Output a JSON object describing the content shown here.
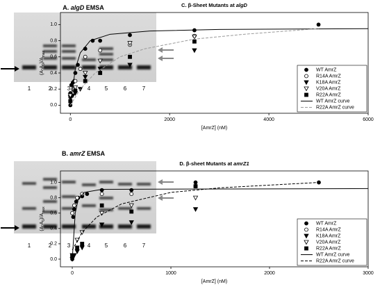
{
  "gels": [
    {
      "title": [
        "A.",
        "algD",
        "EMSA"
      ],
      "lanes": [
        "1",
        "2",
        "3",
        "4",
        "5",
        "6",
        "7"
      ]
    },
    {
      "title": [
        "B.",
        "amrZ",
        "EMSA"
      ],
      "lanes": [
        "1",
        "2",
        "3",
        "4",
        "5",
        "6",
        "7"
      ]
    }
  ],
  "chart_data": [
    {
      "type": "scatter",
      "title": [
        "C.  β-Sheet Mutants at",
        "algD"
      ],
      "xlabel": "[AmrZ] (nM)",
      "ylabel": [
        "(A-A",
        "0",
        ")/A",
        "max"
      ],
      "xlim": [
        -200,
        6000
      ],
      "xticks": [
        0,
        2000,
        4000,
        6000
      ],
      "ylim": [
        -0.1,
        1.15
      ],
      "yticks": [
        {
          "value": 0,
          "label": "0.0"
        },
        0.2,
        0.4,
        0.6,
        0.8,
        {
          "value": 1,
          "label": "1.0"
        }
      ],
      "legend": "lower right",
      "series": [
        {
          "name": "WT AmrZ",
          "color": "#000000",
          "marker": "circle-filled",
          "x": [
            0,
            0,
            20,
            50,
            80,
            100,
            150,
            300,
            450,
            600,
            1200,
            2500,
            5000
          ],
          "values": [
            0.0,
            0.15,
            0.25,
            0.28,
            0.3,
            0.4,
            0.5,
            0.7,
            0.8,
            0.8,
            0.87,
            0.93,
            1.0
          ]
        },
        {
          "name": "R14A AmrZ",
          "color": "#000000",
          "marker": "circle-open",
          "x": [
            0,
            50,
            100,
            200,
            300,
            600,
            1200,
            2500
          ],
          "values": [
            0.1,
            0.2,
            0.3,
            0.45,
            0.6,
            0.68,
            0.75,
            0.86
          ]
        },
        {
          "name": "K18A AmrZ",
          "color": "#000000",
          "marker": "triangle-filled",
          "x": [
            0,
            50,
            100,
            200,
            300,
            600,
            1200,
            2500
          ],
          "values": [
            0.1,
            0.12,
            0.15,
            0.2,
            0.35,
            0.45,
            0.5,
            0.68
          ]
        },
        {
          "name": "V20A AmrZ",
          "color": "#000000",
          "marker": "triangle-open",
          "x": [
            0,
            100,
            300,
            600,
            1200,
            2500
          ],
          "values": [
            0.12,
            0.22,
            0.4,
            0.55,
            0.77,
            0.85
          ]
        },
        {
          "name": "R22A AmrZ",
          "color": "#000000",
          "marker": "square-filled",
          "x": [
            0,
            100,
            300,
            600,
            1200,
            2500
          ],
          "values": [
            0.05,
            0.18,
            0.3,
            0.4,
            0.6,
            0.79
          ]
        },
        {
          "name": "WT AmrZ curve",
          "color": "#000000",
          "line": "solid",
          "x": [
            0,
            100,
            200,
            400,
            800,
            1600,
            3000,
            6000
          ],
          "values": [
            0,
            0.45,
            0.65,
            0.8,
            0.88,
            0.92,
            0.94,
            0.95
          ]
        },
        {
          "name": "R22A AmrZ curve",
          "color": "#999999",
          "line": "dashed",
          "x": [
            0,
            200,
            500,
            1000,
            1500,
            2500,
            3500,
            5000
          ],
          "values": [
            0,
            0.2,
            0.4,
            0.6,
            0.7,
            0.82,
            0.88,
            0.95
          ]
        }
      ]
    },
    {
      "type": "scatter",
      "title": [
        "D.  β-sheet Mutants at",
        "amrZ1"
      ],
      "xlabel": "[AmrZ] (nM)",
      "ylabel": [
        "(A-A",
        "0",
        ")/A",
        "max"
      ],
      "xlim": [
        -120,
        3000
      ],
      "xticks": [
        0,
        1000,
        2000,
        3000
      ],
      "ylim": [
        -0.1,
        1.15
      ],
      "yticks": [
        {
          "value": 0,
          "label": "0.0"
        },
        0.2,
        0.4,
        0.6,
        0.8,
        {
          "value": 1,
          "label": "1.0"
        }
      ],
      "legend": "lower right",
      "series": [
        {
          "name": "WT AmrZ",
          "color": "#000000",
          "marker": "circle-filled",
          "x": [
            0,
            10,
            20,
            40,
            60,
            100,
            150,
            300,
            600,
            1250,
            2500
          ],
          "values": [
            0,
            0.55,
            0.65,
            0.75,
            0.8,
            0.82,
            0.85,
            0.9,
            0.9,
            1.0,
            1.0
          ]
        },
        {
          "name": "R14A AmrZ",
          "color": "#000000",
          "marker": "circle-open",
          "x": [
            0,
            20,
            50,
            100,
            300,
            600,
            1250
          ],
          "values": [
            0.6,
            0.7,
            0.8,
            0.85,
            0.85,
            0.85,
            0.95
          ]
        },
        {
          "name": "K18A AmrZ",
          "color": "#000000",
          "marker": "triangle-filled",
          "x": [
            0,
            20,
            50,
            100,
            300,
            600,
            1250
          ],
          "values": [
            0,
            0.05,
            0.1,
            0.15,
            0.45,
            0.48,
            0.65
          ]
        },
        {
          "name": "V20A AmrZ",
          "color": "#000000",
          "marker": "triangle-open",
          "x": [
            0,
            50,
            100,
            300,
            600,
            1250
          ],
          "values": [
            0.05,
            0.25,
            0.35,
            0.6,
            0.7,
            0.8
          ]
        },
        {
          "name": "R22A AmrZ",
          "color": "#000000",
          "marker": "square-filled",
          "x": [
            0,
            50,
            100,
            300,
            600,
            1250
          ],
          "values": [
            0.05,
            0.15,
            0.2,
            0.7,
            0.62,
            0.95
          ]
        },
        {
          "name": "WT AmrZ curve",
          "color": "#000000",
          "line": "solid",
          "x": [
            0,
            30,
            60,
            120,
            300,
            3000
          ],
          "values": [
            0,
            0.6,
            0.78,
            0.87,
            0.91,
            0.92
          ]
        },
        {
          "name": "R22A AmrZ curve",
          "color": "#000000",
          "line": "dashed",
          "x": [
            0,
            100,
            250,
            500,
            1000,
            1500,
            2500
          ],
          "values": [
            0.12,
            0.35,
            0.55,
            0.72,
            0.87,
            0.93,
            1.0
          ]
        }
      ]
    }
  ]
}
